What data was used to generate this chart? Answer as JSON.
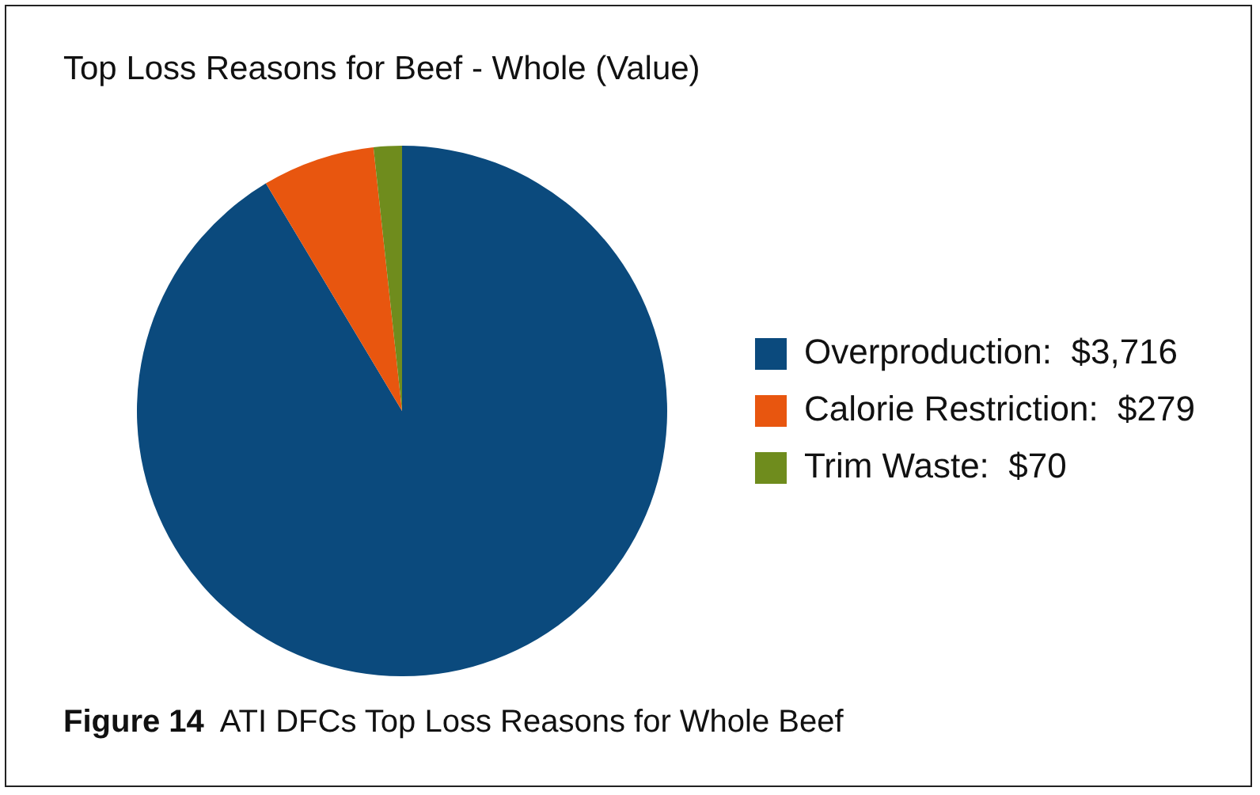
{
  "chart_data": {
    "type": "pie",
    "title": "Top Loss Reasons for Beef - Whole (Value)",
    "categories": [
      "Overproduction:  $3,716",
      "Calorie Restriction:  $279",
      "Trim Waste:  $70"
    ],
    "values": [
      3716,
      279,
      70
    ],
    "colors": [
      "#0b4a7d",
      "#e8560f",
      "#6f8c1d"
    ],
    "legend": "right",
    "annotations": [
      "Figure 14  ATI DFCs Top Loss Reasons for Whole Beef"
    ]
  }
}
